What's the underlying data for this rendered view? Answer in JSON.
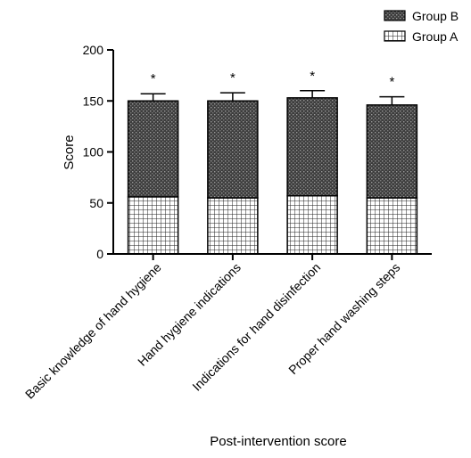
{
  "chart_data": {
    "type": "bar",
    "stacked": true,
    "categories": [
      "Basic knowledge of hand hygiene",
      "Hand hygiene indications",
      "Indications for hand disinfection",
      "Proper hand washing steps"
    ],
    "series": [
      {
        "name": "Group A",
        "values": [
          56,
          55,
          57,
          55
        ],
        "pattern": "grid",
        "color": "#ffffff"
      },
      {
        "name": "Group B",
        "values": [
          94,
          95,
          96,
          91
        ],
        "pattern": "dense-dark",
        "color": "#3a3a3a"
      }
    ],
    "error_bars": [
      7,
      8,
      7,
      8
    ],
    "annotations": [
      "*",
      "*",
      "*",
      "*"
    ],
    "xlabel": "Post-intervention score",
    "ylabel": "Score",
    "ylim": [
      0,
      200
    ],
    "yticks": [
      0,
      50,
      100,
      150,
      200
    ],
    "legend": {
      "placement": "top-right",
      "order": [
        "Group B",
        "Group A"
      ]
    },
    "grid": false
  }
}
